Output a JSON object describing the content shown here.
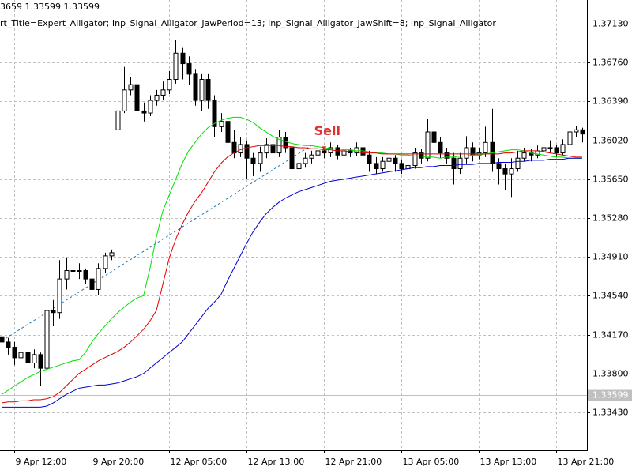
{
  "chart_data": {
    "type": "candlestick",
    "header_lines": [
      "3659 1.33599 1.33599",
      "rt_Title=Expert_Alligator; Inp_Signal_Alligator_JawPeriod=13; Inp_Signal_Alligator_JawShift=8; Inp_Signal_Alligator"
    ],
    "categories": [
      null,
      null,
      "9 Apr 12:00",
      null,
      null,
      null,
      null,
      null,
      null,
      null,
      null,
      null,
      null,
      null,
      "9 Apr 20:00",
      null,
      null,
      null,
      null,
      null,
      null,
      null,
      null,
      null,
      null,
      null,
      "12 Apr 05:00",
      null,
      null,
      null,
      null,
      null,
      null,
      null,
      null,
      null,
      null,
      null,
      "12 Apr 13:00",
      null,
      null,
      null,
      null,
      null,
      null,
      null,
      null,
      null,
      null,
      null,
      "12 Apr 21:00",
      null,
      null,
      null,
      null,
      null,
      null,
      null,
      null,
      null,
      null,
      null,
      "13 Apr 05:00",
      null,
      null,
      null,
      null,
      null,
      null,
      null,
      null,
      null,
      null,
      null,
      "13 Apr 13:00",
      null,
      null,
      null,
      null,
      null,
      null,
      null,
      null,
      null,
      null,
      null,
      "13 Apr 21:00",
      null,
      null,
      null,
      null
    ],
    "open": [
      1.3415,
      1.341,
      1.3405,
      1.3395,
      1.34,
      1.339,
      1.3398,
      1.3385,
      1.344,
      1.3438,
      1.347,
      1.3478,
      1.3478,
      1.3478,
      1.347,
      1.346,
      1.348,
      1.3492,
      1.3612,
      1.363,
      1.365,
      1.3655,
      1.363,
      1.3628,
      1.364,
      1.3645,
      1.365,
      1.366,
      1.3685,
      1.3675,
      1.3665,
      1.364,
      1.366,
      1.364,
      1.3615,
      1.362,
      1.36,
      1.359,
      1.3598,
      1.3585,
      1.358,
      1.359,
      1.3598,
      1.359,
      1.3605,
      1.3595,
      1.3575,
      1.358,
      1.3585,
      1.3588,
      1.3592,
      1.359,
      1.3595,
      1.3588,
      1.3592,
      1.359,
      1.3595,
      1.3588,
      1.358,
      1.3575,
      1.3582,
      1.3585,
      1.358,
      1.3575,
      1.3578,
      1.359,
      1.3585,
      1.361,
      1.36,
      1.359,
      1.3585,
      1.3575,
      1.3585,
      1.3595,
      1.3588,
      1.359,
      1.36,
      1.358,
      1.3575,
      1.357,
      1.3575,
      1.3585,
      1.359,
      1.3588,
      1.3592,
      1.3595,
      1.3595,
      1.359,
      1.3598,
      1.361,
      1.3612
    ],
    "high": [
      1.3418,
      1.3414,
      1.341,
      1.3406,
      1.3404,
      1.3403,
      1.34,
      1.3445,
      1.345,
      1.3488,
      1.349,
      1.3482,
      1.3485,
      1.348,
      1.3475,
      1.3485,
      1.3495,
      1.3498,
      1.3634,
      1.3672,
      1.3662,
      1.366,
      1.3638,
      1.3645,
      1.365,
      1.3658,
      1.3668,
      1.3698,
      1.369,
      1.3682,
      1.367,
      1.3665,
      1.3665,
      1.3645,
      1.3628,
      1.3625,
      1.3612,
      1.3605,
      1.3602,
      1.359,
      1.3596,
      1.3604,
      1.3603,
      1.3612,
      1.361,
      1.36,
      1.3586,
      1.359,
      1.3592,
      1.3597,
      1.3596,
      1.36,
      1.3598,
      1.3596,
      1.3595,
      1.36,
      1.3598,
      1.3592,
      1.3586,
      1.3586,
      1.359,
      1.3588,
      1.3584,
      1.3582,
      1.3595,
      1.3594,
      1.3622,
      1.3625,
      1.3605,
      1.3595,
      1.359,
      1.359,
      1.3606,
      1.36,
      1.3595,
      1.3615,
      1.3632,
      1.3585,
      1.358,
      1.3585,
      1.3592,
      1.3595,
      1.3594,
      1.3597,
      1.36,
      1.3602,
      1.3598,
      1.3603,
      1.3618,
      1.3616,
      1.3614
    ],
    "low": [
      1.3402,
      1.3398,
      1.3388,
      1.339,
      1.338,
      1.3385,
      1.3368,
      1.338,
      1.3425,
      1.3432,
      1.346,
      1.3472,
      1.347,
      1.3465,
      1.345,
      1.3455,
      1.3476,
      1.3488,
      1.361,
      1.3628,
      1.3645,
      1.3625,
      1.362,
      1.3625,
      1.3635,
      1.364,
      1.3646,
      1.3656,
      1.366,
      1.3655,
      1.3635,
      1.363,
      1.3632,
      1.3605,
      1.361,
      1.3595,
      1.3585,
      1.3586,
      1.3565,
      1.3568,
      1.3572,
      1.3585,
      1.3582,
      1.3586,
      1.359,
      1.357,
      1.3572,
      1.3576,
      1.358,
      1.3584,
      1.3585,
      1.3586,
      1.3584,
      1.3585,
      1.3586,
      1.3587,
      1.3584,
      1.3572,
      1.357,
      1.3572,
      1.3578,
      1.3572,
      1.357,
      1.3572,
      1.3575,
      1.358,
      1.3582,
      1.3595,
      1.3585,
      1.358,
      1.356,
      1.357,
      1.358,
      1.3582,
      1.3584,
      1.3586,
      1.3572,
      1.356,
      1.3555,
      1.3548,
      1.3572,
      1.3582,
      1.3582,
      1.3585,
      1.3588,
      1.359,
      1.3586,
      1.3588,
      1.3594,
      1.3605,
      1.36
    ],
    "close": [
      1.341,
      1.3405,
      1.3395,
      1.34,
      1.339,
      1.3398,
      1.3385,
      1.344,
      1.3438,
      1.347,
      1.3478,
      1.3478,
      1.3478,
      1.347,
      1.346,
      1.348,
      1.3492,
      1.3495,
      1.363,
      1.365,
      1.3655,
      1.363,
      1.3628,
      1.364,
      1.3645,
      1.365,
      1.366,
      1.3685,
      1.3675,
      1.3665,
      1.364,
      1.366,
      1.364,
      1.3615,
      1.362,
      1.36,
      1.359,
      1.3598,
      1.3585,
      1.358,
      1.359,
      1.3598,
      1.359,
      1.3605,
      1.3595,
      1.3575,
      1.358,
      1.3585,
      1.3588,
      1.3592,
      1.359,
      1.3595,
      1.3588,
      1.3592,
      1.359,
      1.3595,
      1.3588,
      1.358,
      1.3575,
      1.3582,
      1.3585,
      1.358,
      1.3575,
      1.3578,
      1.359,
      1.3585,
      1.361,
      1.36,
      1.359,
      1.3585,
      1.3575,
      1.3585,
      1.3595,
      1.3588,
      1.359,
      1.36,
      1.358,
      1.3575,
      1.357,
      1.3575,
      1.3585,
      1.359,
      1.3588,
      1.3592,
      1.3595,
      1.3595,
      1.359,
      1.3598,
      1.361,
      1.3612,
      1.3608
    ],
    "lines": [
      {
        "color": "#00e000",
        "values": [
          1.336,
          1.3364,
          1.3368,
          1.3372,
          1.3376,
          1.3379,
          1.3382,
          1.3384,
          1.3386,
          1.3388,
          1.339,
          1.3392,
          1.3393,
          1.34,
          1.341,
          1.3418,
          1.3425,
          1.3432,
          1.3438,
          1.3443,
          1.3448,
          1.3452,
          1.3454,
          1.348,
          1.351,
          1.3535,
          1.355,
          1.3565,
          1.358,
          1.3592,
          1.36,
          1.3608,
          1.3614,
          1.3618,
          1.3621,
          1.3623,
          1.3624,
          1.3624,
          1.3622,
          1.3619,
          1.3614,
          1.361,
          1.3606,
          1.3603,
          1.3601,
          1.3599,
          1.3598,
          1.3597,
          1.3597,
          1.3596,
          1.3595,
          1.3594,
          1.3594,
          1.3593,
          1.3593,
          1.3592,
          1.3592,
          1.3591,
          1.359,
          1.359,
          1.3589,
          1.3589,
          1.3588,
          1.3588,
          1.3587,
          1.3587,
          1.3586,
          1.3586,
          1.3585,
          1.3586,
          1.3586,
          1.3587,
          1.3587,
          1.3588,
          1.3588,
          1.3589,
          1.359,
          1.3591,
          1.3592,
          1.3593,
          1.3593,
          1.3592,
          1.359,
          1.3589,
          1.3588,
          1.3587,
          1.3586,
          1.3586,
          1.3585,
          1.3585,
          1.3585
        ]
      },
      {
        "color": "#e00000",
        "values": [
          1.3352,
          1.3353,
          1.3353,
          1.3354,
          1.3354,
          1.3355,
          1.3355,
          1.3356,
          1.3358,
          1.3362,
          1.3368,
          1.3374,
          1.338,
          1.3384,
          1.3388,
          1.3392,
          1.3395,
          1.3398,
          1.3401,
          1.3405,
          1.341,
          1.3416,
          1.3422,
          1.343,
          1.344,
          1.3465,
          1.349,
          1.3508,
          1.3522,
          1.3534,
          1.3544,
          1.3552,
          1.3562,
          1.3572,
          1.358,
          1.3586,
          1.359,
          1.3593,
          1.3595,
          1.3596,
          1.3597,
          1.3597,
          1.3597,
          1.3597,
          1.3596,
          1.3596,
          1.3595,
          1.3595,
          1.3594,
          1.3594,
          1.3593,
          1.3593,
          1.3592,
          1.3592,
          1.3591,
          1.3591,
          1.359,
          1.359,
          1.359,
          1.3589,
          1.3589,
          1.3589,
          1.3589,
          1.3589,
          1.3589,
          1.3589,
          1.3589,
          1.3589,
          1.3589,
          1.3589,
          1.3589,
          1.3589,
          1.3589,
          1.3589,
          1.3589,
          1.3589,
          1.3589,
          1.3589,
          1.359,
          1.359,
          1.3591,
          1.3592,
          1.3592,
          1.3592,
          1.3591,
          1.359,
          1.3589,
          1.3588,
          1.3587,
          1.3586,
          1.3586
        ]
      },
      {
        "color": "#0000d0",
        "values": [
          1.3348,
          1.3348,
          1.3348,
          1.3348,
          1.3348,
          1.3348,
          1.3348,
          1.3349,
          1.3352,
          1.3356,
          1.336,
          1.3363,
          1.3366,
          1.3367,
          1.3368,
          1.3369,
          1.3369,
          1.337,
          1.3371,
          1.3373,
          1.3375,
          1.3377,
          1.338,
          1.3385,
          1.339,
          1.3395,
          1.34,
          1.3405,
          1.341,
          1.3418,
          1.3426,
          1.3434,
          1.3442,
          1.3448,
          1.3455,
          1.3468,
          1.348,
          1.3492,
          1.3504,
          1.3515,
          1.3524,
          1.3532,
          1.3538,
          1.3543,
          1.3547,
          1.355,
          1.3553,
          1.3555,
          1.3557,
          1.3559,
          1.3561,
          1.3563,
          1.3564,
          1.3565,
          1.3566,
          1.3567,
          1.3568,
          1.3569,
          1.357,
          1.3571,
          1.3572,
          1.3573,
          1.3574,
          1.3575,
          1.3576,
          1.3576,
          1.3577,
          1.3577,
          1.3578,
          1.3578,
          1.3578,
          1.3579,
          1.3579,
          1.3579,
          1.358,
          1.358,
          1.358,
          1.3581,
          1.3581,
          1.3581,
          1.3582,
          1.3582,
          1.3583,
          1.3583,
          1.3583,
          1.3584,
          1.3584,
          1.3584,
          1.3585,
          1.3585,
          1.3585
        ]
      }
    ],
    "trend": {
      "color": "#1e78b4",
      "x": [
        0,
        48
      ],
      "values": [
        1.3411,
        1.3597
      ]
    },
    "annotation": {
      "text": "Sell",
      "color": "#e03030",
      "x": 50,
      "y": 1.3594
    },
    "current_price": {
      "value": 1.33599,
      "label": "1.33599"
    },
    "ylim": [
      1.33069,
      1.37356
    ],
    "yticks": [
      {
        "value": 1.3713,
        "label": "1.37130"
      },
      {
        "value": 1.3676,
        "label": "1.36760"
      },
      {
        "value": 1.3639,
        "label": "1.36390"
      },
      {
        "value": 1.3602,
        "label": "1.36020"
      },
      {
        "value": 1.3565,
        "label": "1.35650"
      },
      {
        "value": 1.3528,
        "label": "1.35280"
      },
      {
        "value": 1.3491,
        "label": "1.34910"
      },
      {
        "value": 1.3454,
        "label": "1.34540"
      },
      {
        "value": 1.3417,
        "label": "1.34170"
      },
      {
        "value": 1.338,
        "label": "1.33800"
      },
      {
        "value": 1.3343,
        "label": "1.33430"
      }
    ],
    "grid": true
  }
}
